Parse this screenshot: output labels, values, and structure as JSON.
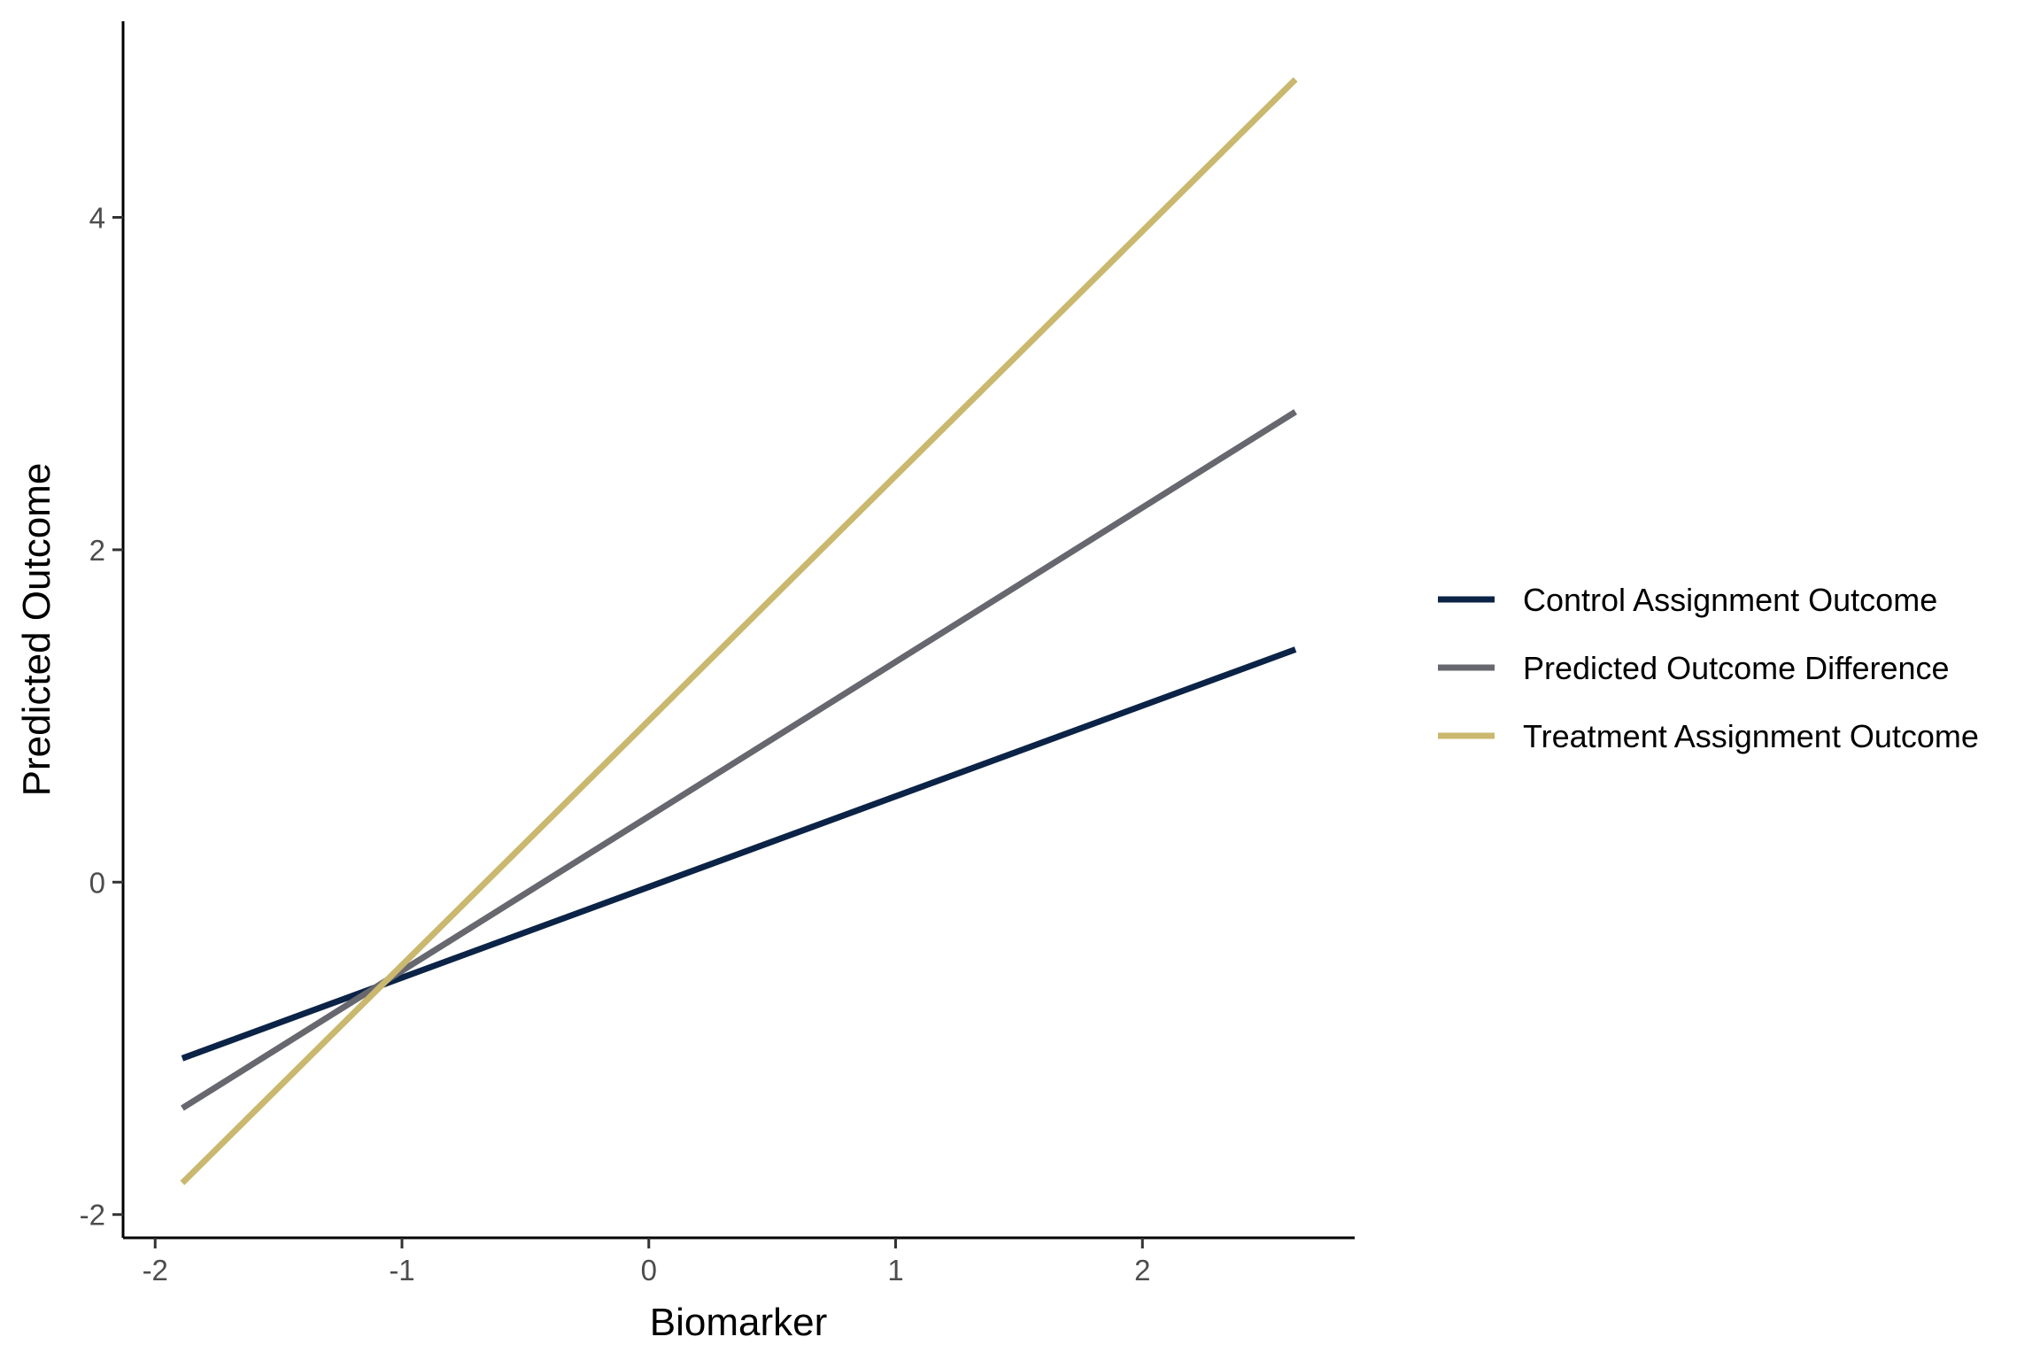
{
  "chart_data": {
    "type": "line",
    "xlabel": "Biomarker",
    "ylabel": "Predicted Outcome",
    "xlim": [
      -2.13,
      2.86
    ],
    "ylim": [
      -2.14,
      5.18
    ],
    "x_ticks": [
      "-2",
      "-1",
      "0",
      "1",
      "2"
    ],
    "y_ticks": [
      "-2",
      "0",
      "2",
      "4"
    ],
    "grid": false,
    "legend_position": "right",
    "series": [
      {
        "name": "Control Assignment Outcome",
        "color": "#0b2346",
        "x": [
          -1.89,
          2.62
        ],
        "y": [
          -1.06,
          1.4
        ]
      },
      {
        "name": "Predicted Outcome Difference",
        "color": "#67676f",
        "x": [
          -1.89,
          2.62
        ],
        "y": [
          -1.36,
          2.83
        ]
      },
      {
        "name": "Treatment Assignment Outcome",
        "color": "#c9b86e",
        "x": [
          -1.89,
          2.62
        ],
        "y": [
          -1.81,
          4.83
        ]
      }
    ]
  }
}
